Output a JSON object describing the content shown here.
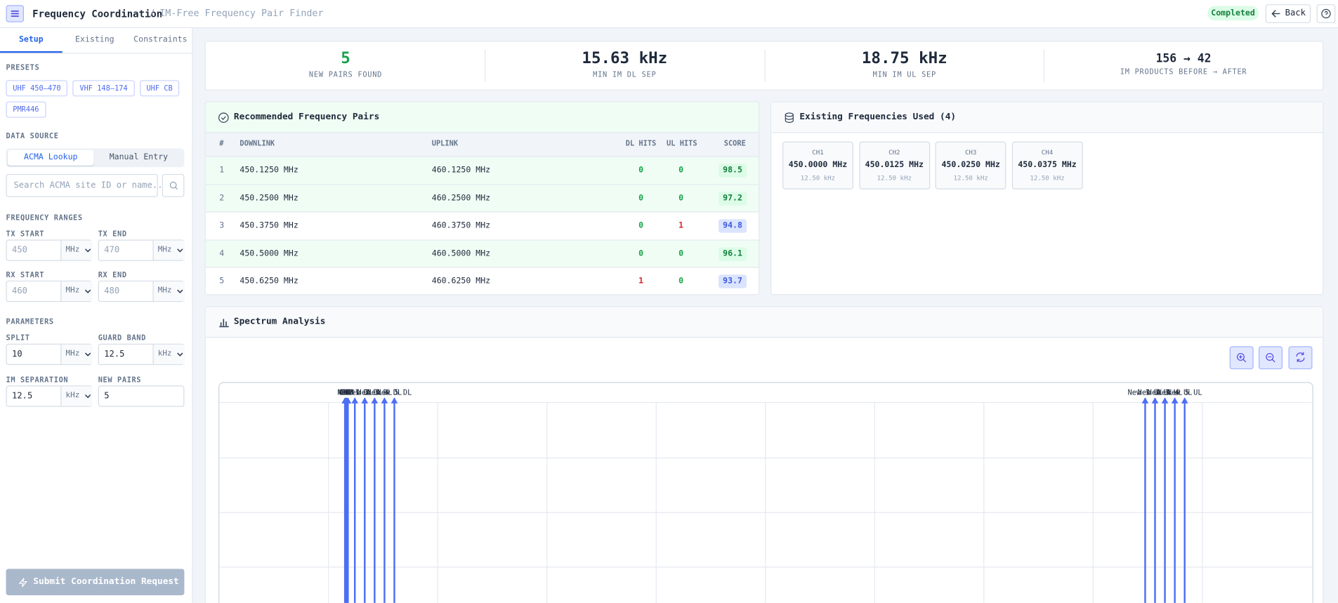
{
  "header": {
    "title": "Frequency Coordination",
    "separator": "/",
    "subtitle": "IM-Free Frequency Pair Finder",
    "status": "Completed",
    "back": "Back"
  },
  "sidebar": {
    "tabs": [
      "Setup",
      "Existing",
      "Constraints"
    ],
    "presets_label": "PRESETS",
    "presets": [
      "UHF 450–470",
      "VHF 148–174",
      "UHF CB",
      "PMR446"
    ],
    "data_source_label": "DATA SOURCE",
    "data_source_options": [
      "ACMA Lookup",
      "Manual Entry"
    ],
    "search_placeholder": "Search ACMA site ID or name...",
    "frequency_ranges": {
      "label": "FREQUENCY RANGES",
      "fields": [
        {
          "label": "TX START",
          "placeholder": "450",
          "unit": "MHz"
        },
        {
          "label": "TX END",
          "placeholder": "470",
          "unit": "MHz"
        },
        {
          "label": "RX START",
          "placeholder": "460",
          "unit": "MHz"
        },
        {
          "label": "RX END",
          "placeholder": "480",
          "unit": "MHz"
        }
      ]
    },
    "parameters": {
      "label": "PARAMETERS",
      "fields": [
        {
          "label": "SPLIT",
          "value": "10",
          "unit": "MHz"
        },
        {
          "label": "GUARD BAND",
          "value": "12.5",
          "unit": "kHz"
        },
        {
          "label": "IM SEPARATION",
          "value": "12.5",
          "unit": "kHz"
        },
        {
          "label": "NEW PAIRS",
          "value": "5"
        }
      ]
    },
    "submit": "Submit Coordination Request"
  },
  "stats": [
    {
      "value": "5",
      "label": "NEW PAIRS FOUND"
    },
    {
      "value": "15.63 kHz",
      "label": "MIN IM DL SEP"
    },
    {
      "value": "18.75 kHz",
      "label": "MIN IM UL SEP"
    },
    {
      "value": "156 → 42",
      "label": "IM PRODUCTS BEFORE → AFTER"
    }
  ],
  "pairs": {
    "title": "Recommended Frequency Pairs",
    "columns": [
      "#",
      "DOWNLINK",
      "UPLINK",
      "DL HITS",
      "UL HITS",
      "SCORE"
    ],
    "rows": [
      [
        "1",
        "450.1250 MHz",
        "460.1250 MHz",
        "0",
        "0",
        "98.5"
      ],
      [
        "2",
        "450.2500 MHz",
        "460.2500 MHz",
        "0",
        "0",
        "97.2"
      ],
      [
        "3",
        "450.3750 MHz",
        "460.3750 MHz",
        "0",
        "1",
        "94.8"
      ],
      [
        "4",
        "450.5000 MHz",
        "460.5000 MHz",
        "0",
        "0",
        "96.1"
      ],
      [
        "5",
        "450.6250 MHz",
        "460.6250 MHz",
        "1",
        "0",
        "93.7"
      ]
    ]
  },
  "existing": {
    "title": "Existing Frequencies Used (4)",
    "channels": [
      {
        "name": "CH1",
        "freq": "450.0000 MHz",
        "bw": "12.50 kHz"
      },
      {
        "name": "CH2",
        "freq": "450.0125 MHz",
        "bw": "12.50 kHz"
      },
      {
        "name": "CH3",
        "freq": "450.0250 MHz",
        "bw": "12.50 kHz"
      },
      {
        "name": "CH4",
        "freq": "450.0375 MHz",
        "bw": "12.50 kHz"
      }
    ]
  },
  "spectrum": {
    "title": "Spectrum Analysis",
    "xlim": [
      448.41,
      462.23
    ],
    "markers": [
      {
        "label": "CH1",
        "freq": 450.0
      },
      {
        "label": "CH2",
        "freq": 450.0125
      },
      {
        "label": "CH3",
        "freq": 450.025
      },
      {
        "label": "CH4",
        "freq": 450.0375
      },
      {
        "label": "New 1 DL",
        "freq": 450.125
      },
      {
        "label": "New 2 DL",
        "freq": 450.25
      },
      {
        "label": "New 3 DL",
        "freq": 450.375
      },
      {
        "label": "New 4 DL",
        "freq": 450.5
      },
      {
        "label": "New 5 DL",
        "freq": 450.625
      },
      {
        "label": "New 1 UL",
        "freq": 460.125
      },
      {
        "label": "New 2 UL",
        "freq": 460.25
      },
      {
        "label": "New 3 UL",
        "freq": 460.375
      },
      {
        "label": "New 4 UL",
        "freq": 460.5
      },
      {
        "label": "New 5 UL",
        "freq": 460.625
      }
    ]
  }
}
